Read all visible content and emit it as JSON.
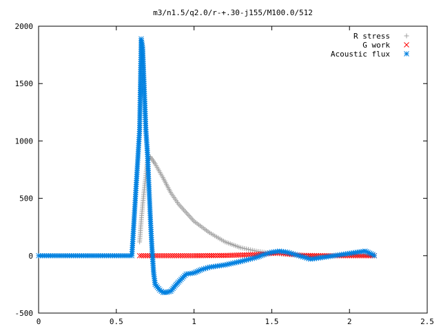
{
  "chart_data": {
    "type": "scatter",
    "title": "m3/n1.5/q2.0/r-+.30-j155/M100.0/512",
    "xlim": [
      0,
      2.5
    ],
    "ylim": [
      -500,
      2000
    ],
    "x_ticks": [
      0,
      0.5,
      1,
      1.5,
      2,
      2.5
    ],
    "x_tick_labels": [
      "0",
      "0.5",
      "1",
      "1.5",
      "2",
      "2.5"
    ],
    "y_ticks": [
      -500,
      0,
      500,
      1000,
      1500,
      2000
    ],
    "y_tick_labels": [
      "-500",
      "0",
      "500",
      "1000",
      "1500",
      "2000"
    ],
    "grid": false,
    "legend_position": "top-right",
    "series": [
      {
        "name": "R stress",
        "marker": "+",
        "color": "#a0a0a0",
        "x": [
          0.65,
          0.66,
          0.67,
          0.68,
          0.69,
          0.7,
          0.72,
          0.75,
          0.8,
          0.85,
          0.9,
          1.0,
          1.1,
          1.2,
          1.3,
          1.4,
          1.5,
          1.6,
          1.7,
          1.8,
          1.9,
          2.0,
          2.1,
          2.16
        ],
        "y": [
          120,
          300,
          450,
          580,
          700,
          830,
          860,
          800,
          680,
          550,
          450,
          300,
          200,
          120,
          70,
          40,
          20,
          10,
          5,
          3,
          2,
          1,
          0,
          0
        ]
      },
      {
        "name": "G work",
        "marker": "x",
        "color": "#ff0000",
        "x": [
          0.65,
          0.8,
          1.0,
          1.2,
          1.4,
          1.5,
          1.55,
          1.6,
          1.7,
          1.8,
          1.9,
          2.0,
          2.1,
          2.16
        ],
        "y": [
          0,
          0,
          0,
          2,
          10,
          20,
          25,
          15,
          2,
          0,
          0,
          0,
          0,
          0
        ]
      },
      {
        "name": "Acoustic flux",
        "marker": "*",
        "color": "#0080e0",
        "x": [
          0.0,
          0.2,
          0.4,
          0.6,
          0.65,
          0.66,
          0.67,
          0.68,
          0.69,
          0.7,
          0.71,
          0.72,
          0.73,
          0.74,
          0.75,
          0.78,
          0.8,
          0.82,
          0.85,
          0.88,
          0.9,
          0.95,
          1.0,
          1.05,
          1.1,
          1.2,
          1.3,
          1.4,
          1.45,
          1.5,
          1.55,
          1.6,
          1.65,
          1.7,
          1.75,
          1.8,
          1.85,
          1.9,
          1.95,
          2.0,
          2.05,
          2.1,
          2.15,
          2.16
        ],
        "y": [
          0,
          0,
          0,
          0,
          1100,
          1890,
          1800,
          1450,
          1100,
          900,
          600,
          300,
          50,
          -150,
          -250,
          -300,
          -320,
          -320,
          -310,
          -260,
          -230,
          -160,
          -150,
          -120,
          -100,
          -80,
          -50,
          -15,
          10,
          30,
          40,
          30,
          10,
          -10,
          -30,
          -20,
          -10,
          0,
          10,
          20,
          30,
          40,
          10,
          0
        ]
      }
    ]
  }
}
